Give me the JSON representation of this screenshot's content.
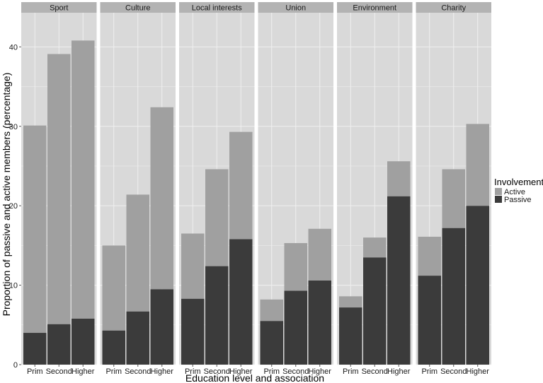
{
  "chart_data": {
    "type": "bar",
    "stacked": true,
    "facets": [
      "Sport",
      "Culture",
      "Local interests",
      "Union",
      "Environment",
      "Charity"
    ],
    "categories": [
      "Prim",
      "Second",
      "Higher"
    ],
    "series": [
      {
        "name": "Passive",
        "color": "#3b3b3b",
        "values": [
          [
            4.0,
            5.1,
            5.8
          ],
          [
            4.3,
            6.7,
            9.5
          ],
          [
            8.3,
            12.4,
            15.8
          ],
          [
            5.5,
            9.3,
            10.6
          ],
          [
            7.2,
            13.5,
            21.2
          ],
          [
            11.2,
            17.2,
            20.0
          ]
        ]
      },
      {
        "name": "Active",
        "color": "#a0a0a0",
        "values": [
          [
            26.1,
            34.0,
            35.0
          ],
          [
            10.7,
            14.7,
            22.9
          ],
          [
            8.2,
            12.2,
            13.5
          ],
          [
            2.7,
            6.0,
            6.5
          ],
          [
            1.4,
            2.5,
            4.4
          ],
          [
            4.9,
            7.4,
            10.3
          ]
        ]
      }
    ],
    "xlabel": "Education level and association",
    "ylabel": "Proportion of passive and active members (percentage)",
    "ylim": [
      0,
      44.3
    ],
    "yticks": [
      0,
      10,
      20,
      30,
      40
    ],
    "legend": {
      "title": "Involvement",
      "entries": [
        "Active",
        "Passive"
      ],
      "position": "right"
    },
    "grid": true,
    "colors": {
      "panel": "#d9d9d9",
      "strip": "#b3b3b3",
      "grid": "#f0f0f0"
    }
  }
}
